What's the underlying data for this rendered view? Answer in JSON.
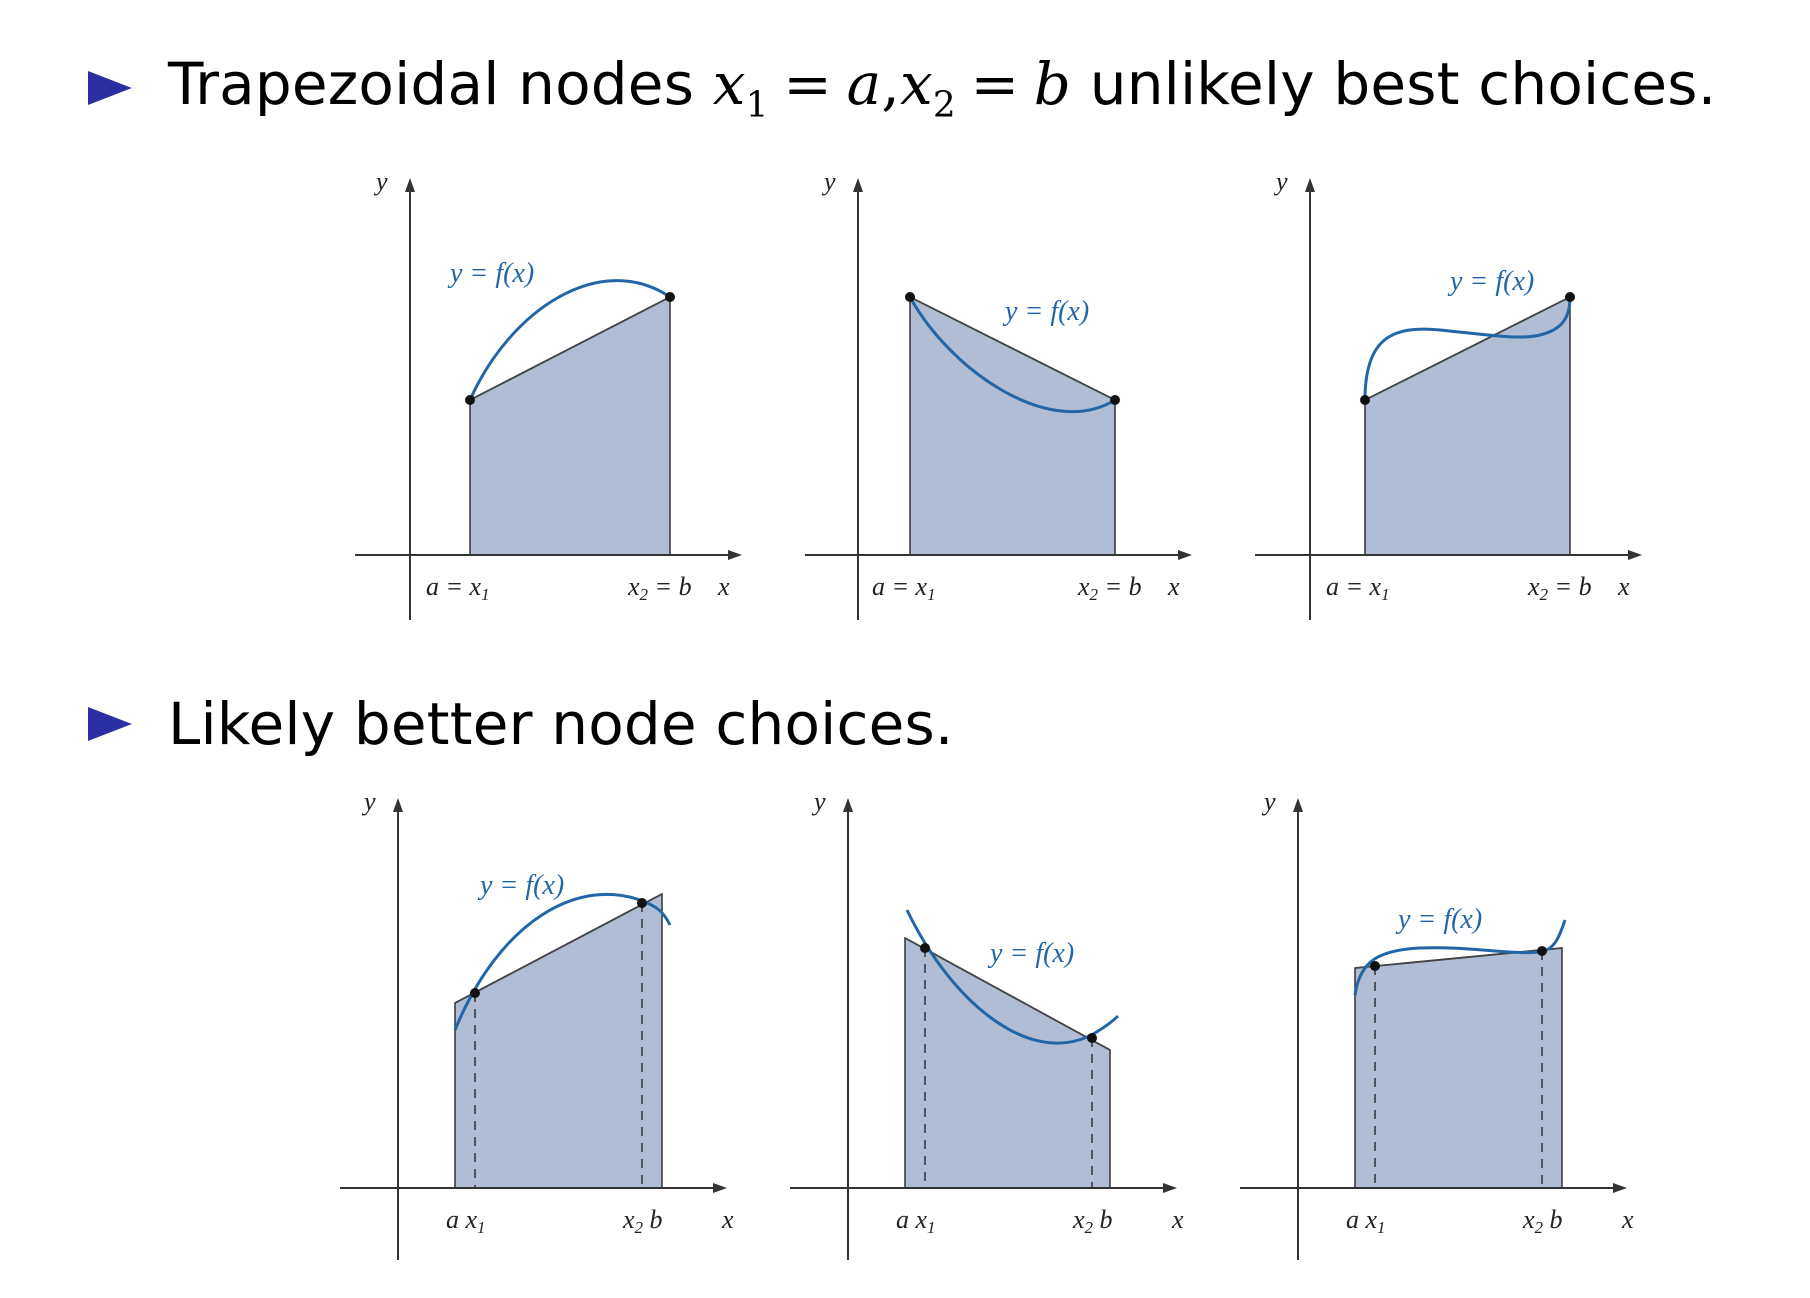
{
  "bullets": [
    {
      "pre": "Trapezoidal nodes ",
      "x1": "x",
      "x1_sub": "1",
      "eq1": "=",
      "a": "a",
      "comma": ",",
      "x2": "x",
      "x2_sub": "2",
      "eq2": "=",
      "b": "b",
      "post": " unlikely best choices."
    },
    {
      "text": "Likely better node choices."
    }
  ],
  "labels": {
    "y": "y",
    "x": "x",
    "curve": "y = f(x)",
    "a_eq_x1": "a = x",
    "x2_eq_b": "= b",
    "x_sym": "x",
    "a_sym": "a",
    "b_sym": "b",
    "sub1": "1",
    "sub2": "2"
  },
  "colors": {
    "bullet": "#2b2fa3",
    "fill": "#b0bdd4",
    "curve": "#2266a8",
    "axis": "#333333"
  },
  "panels": [
    "increasing-concave",
    "decreasing-convex",
    "inflection"
  ]
}
